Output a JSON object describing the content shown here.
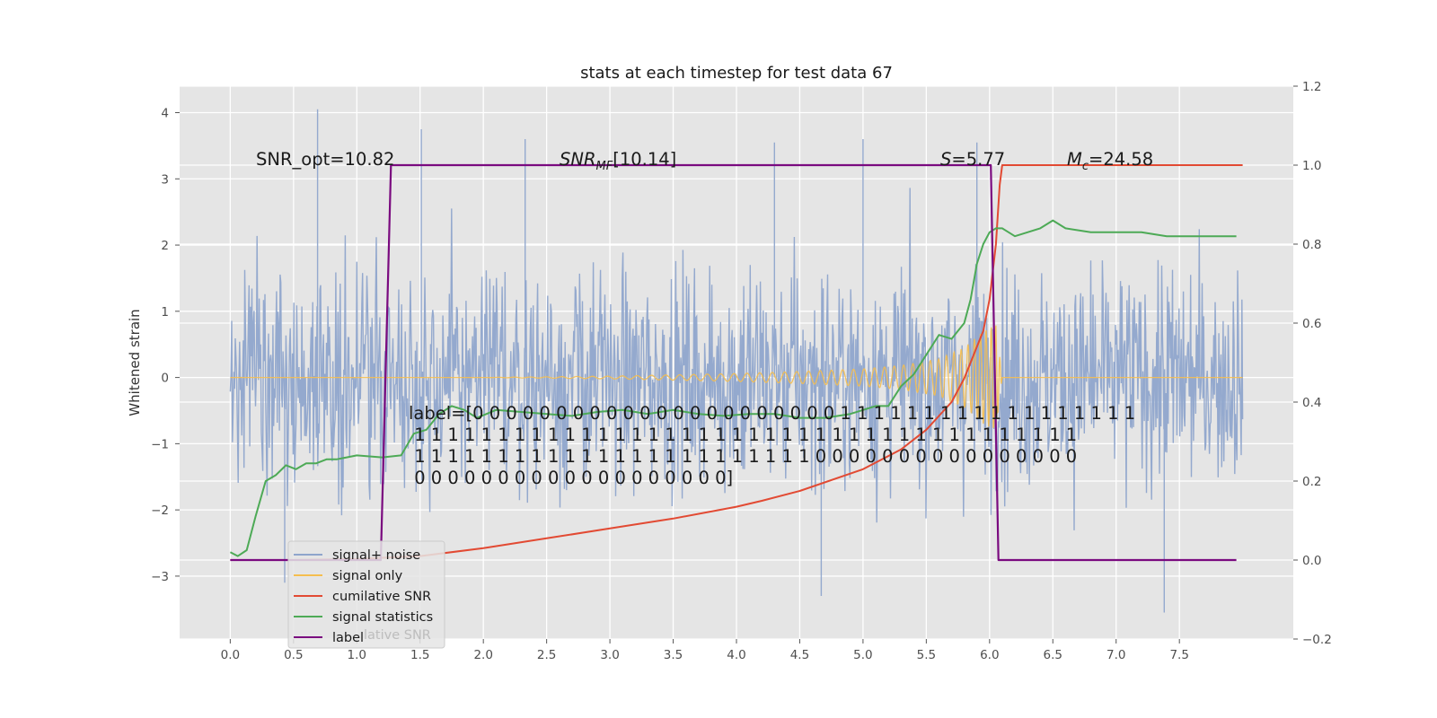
{
  "chart_data": {
    "type": "line",
    "title": "stats at each timestep for test data 67",
    "xlabel": "",
    "ylabel": "Whitened strain",
    "xlim": [
      -0.4,
      8.4
    ],
    "ylim": [
      -3.95,
      4.4
    ],
    "y2lim": [
      -0.2,
      1.2
    ],
    "grid": true,
    "legend_position": "lower-left",
    "xticks": [
      "0.0",
      "0.5",
      "1.0",
      "1.5",
      "2.0",
      "2.5",
      "3.0",
      "3.5",
      "4.0",
      "4.5",
      "5.0",
      "5.5",
      "6.0",
      "6.5",
      "7.0",
      "7.5"
    ],
    "yticks": [
      "4",
      "3",
      "2",
      "1",
      "0",
      "−1",
      "−2",
      "−3"
    ],
    "y2ticks": [
      "1.2",
      "1.0",
      "0.8",
      "0.6",
      "0.4",
      "0.2",
      "0.0",
      "−0.2"
    ],
    "annotations": {
      "snr_opt": "SNR_opt=10.82",
      "snr_mf": "[10.14]",
      "s_value": "=5.77",
      "mc_value": "=24.58",
      "label_lines": [
        "label=[0 0 0 0 0 0 0 0 0 0 0 0 0 0 0 0 0 0 0 0 0 0 1 1 1 1 1 1 1 1 1 1 1 1 1 1 1 1 1 1",
        " 1 1 1 1 1 1 1 1 1 1 1 1 1 1 1 1 1 1 1 1 1 1 1 1 1 1 1 1 1 1 1 1 1 1 1 1 1 1 1 1",
        " 1 1 1 1 1 1 1 1 1 1 1 1 1 1 1 1 1 1 1 1 1 1 1 1 0 0 0 0 0 0 0 0 0 0 0 0 0 0 0 0",
        " 0 0 0 0 0 0 0 0 0 0 0 0 0 0 0 0 0 0 0]"
      ],
      "legend_ghost_text": "lative SNR"
    },
    "colors": {
      "signal_noise": "#8fa5cc",
      "signal_only": "#f5be4f",
      "cumulative_snr": "#e24a33",
      "signal_statistics": "#4daa56",
      "label": "#7a0a7f",
      "background": "#e5e5e5",
      "grid": "#ffffff"
    },
    "series": [
      {
        "name": "signal+ noise",
        "axis": "left",
        "x_range": [
          0.0,
          8.0
        ],
        "amplitude_envelope": "stochastic, roughly within -3.5 to 4.1",
        "sample_peaks": [
          [
            0.69,
            4.05
          ],
          [
            1.51,
            3.75
          ],
          [
            2.33,
            3.6
          ],
          [
            4.3,
            3.55
          ],
          [
            5.0,
            3.6
          ],
          [
            5.9,
            3.55
          ],
          [
            0.43,
            -3.1
          ],
          [
            4.67,
            -3.3
          ],
          [
            7.38,
            -3.55
          ]
        ]
      },
      {
        "name": "signal only",
        "axis": "left",
        "x": [
          0.0,
          1.0,
          2.0,
          2.5,
          3.0,
          3.5,
          4.0,
          4.5,
          5.0,
          5.3,
          5.6,
          5.8,
          5.95,
          6.05,
          6.1,
          8.0
        ],
        "y_amplitude": [
          0.0,
          0.0,
          0.0,
          0.01,
          0.02,
          0.04,
          0.06,
          0.09,
          0.13,
          0.18,
          0.28,
          0.45,
          0.7,
          0.8,
          0.0,
          0.0
        ]
      },
      {
        "name": "cumilative SNR",
        "axis": "right",
        "x": [
          0.0,
          0.5,
          1.0,
          1.5,
          2.0,
          2.5,
          3.0,
          3.5,
          4.0,
          4.2,
          4.5,
          5.0,
          5.3,
          5.5,
          5.7,
          5.8,
          5.9,
          5.95,
          6.0,
          6.05,
          6.08,
          6.1,
          8.0
        ],
        "values": [
          0.0,
          0.0,
          0.003,
          0.01,
          0.03,
          0.055,
          0.08,
          0.105,
          0.135,
          0.15,
          0.175,
          0.23,
          0.28,
          0.33,
          0.4,
          0.46,
          0.54,
          0.58,
          0.66,
          0.8,
          0.95,
          1.0,
          1.0
        ]
      },
      {
        "name": "signal statistics",
        "axis": "right",
        "x": [
          0.0,
          0.06,
          0.13,
          0.2,
          0.28,
          0.36,
          0.44,
          0.52,
          0.6,
          0.68,
          0.76,
          0.84,
          0.92,
          1.0,
          1.2,
          1.35,
          1.45,
          1.55,
          1.65,
          1.75,
          1.85,
          1.95,
          2.1,
          2.3,
          2.5,
          2.7,
          2.9,
          3.1,
          3.3,
          3.5,
          3.7,
          3.9,
          4.1,
          4.3,
          4.5,
          4.7,
          4.9,
          5.1,
          5.2,
          5.3,
          5.4,
          5.5,
          5.6,
          5.7,
          5.8,
          5.85,
          5.9,
          5.95,
          6.0,
          6.05,
          6.1,
          6.15,
          6.2,
          6.3,
          6.4,
          6.5,
          6.6,
          6.8,
          7.0,
          7.2,
          7.4,
          7.6,
          7.8,
          7.95
        ],
        "values": [
          0.02,
          0.01,
          0.025,
          0.11,
          0.2,
          0.215,
          0.24,
          0.23,
          0.245,
          0.245,
          0.255,
          0.255,
          0.26,
          0.265,
          0.26,
          0.265,
          0.32,
          0.33,
          0.37,
          0.39,
          0.38,
          0.36,
          0.38,
          0.375,
          0.37,
          0.365,
          0.375,
          0.38,
          0.37,
          0.38,
          0.37,
          0.365,
          0.37,
          0.37,
          0.36,
          0.36,
          0.37,
          0.39,
          0.39,
          0.44,
          0.47,
          0.52,
          0.57,
          0.56,
          0.6,
          0.66,
          0.75,
          0.8,
          0.83,
          0.84,
          0.84,
          0.83,
          0.82,
          0.83,
          0.84,
          0.86,
          0.84,
          0.83,
          0.83,
          0.83,
          0.82,
          0.82,
          0.82,
          0.82
        ]
      },
      {
        "name": "label",
        "axis": "right",
        "x": [
          0.0,
          1.19,
          1.27,
          6.01,
          6.07,
          7.95
        ],
        "values": [
          0.0,
          0.0,
          1.0,
          1.0,
          0.0,
          0.0
        ]
      }
    ]
  }
}
